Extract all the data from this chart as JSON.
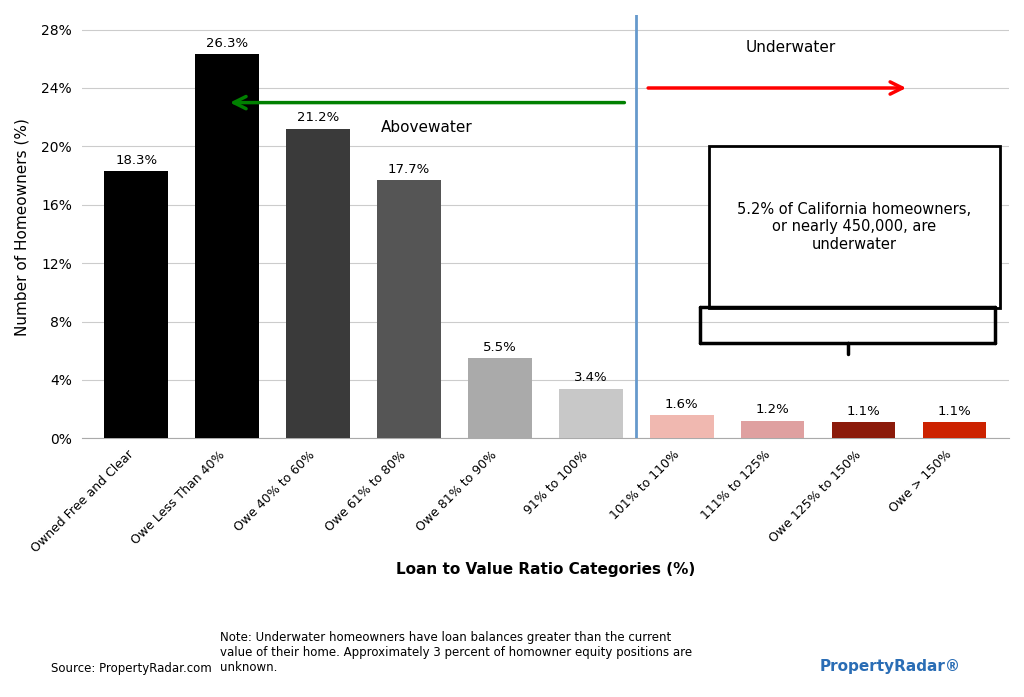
{
  "categories": [
    "Owned Free and Clear",
    "Owe Less Than 40%",
    "Owe 40% to 60%",
    "Owe 61% to 80%",
    "Owe 81% to 90%",
    "91% to 100%",
    "101% to 110%",
    "111% to 125%",
    "Owe 125% to 150%",
    "Owe > 150%"
  ],
  "values": [
    18.3,
    26.3,
    21.2,
    17.7,
    5.5,
    3.4,
    1.6,
    1.2,
    1.1,
    1.1
  ],
  "bar_colors": [
    "#000000",
    "#000000",
    "#3a3a3a",
    "#555555",
    "#aaaaaa",
    "#c8c8c8",
    "#f0b8b0",
    "#dfa0a0",
    "#8b1a0a",
    "#cc2200"
  ],
  "ylabel": "Number of Homeowners (%)",
  "xlabel": "Loan to Value Ratio Categories (%)",
  "ylim": [
    0,
    29
  ],
  "yticks": [
    0,
    4,
    8,
    12,
    16,
    20,
    24,
    28
  ],
  "ytick_labels": [
    "0%",
    "4%",
    "8%",
    "12%",
    "16%",
    "20%",
    "24%",
    "28%"
  ],
  "bg_color": "#ffffff",
  "annotation_box_text": "5.2% of California homeowners,\nor nearly 450,000, are\nunderwater",
  "note_text": "Note: Underwater homeowners have loan balances greater than the current\nvalue of their home. Approximately 3 percent of homowner equity positions are\nunknown.",
  "source_text": "Source: PropertyRadar.com",
  "tick_fontsize": 10,
  "label_fontsize": 11
}
